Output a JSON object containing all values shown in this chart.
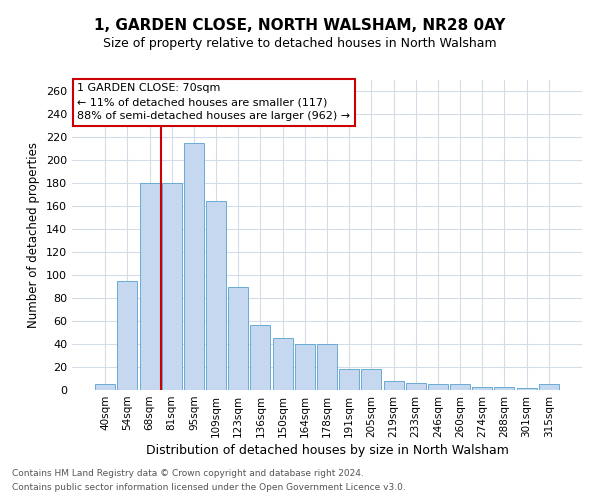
{
  "title": "1, GARDEN CLOSE, NORTH WALSHAM, NR28 0AY",
  "subtitle": "Size of property relative to detached houses in North Walsham",
  "xlabel": "Distribution of detached houses by size in North Walsham",
  "ylabel": "Number of detached properties",
  "footnote1": "Contains HM Land Registry data © Crown copyright and database right 2024.",
  "footnote2": "Contains public sector information licensed under the Open Government Licence v3.0.",
  "bar_labels": [
    "40sqm",
    "54sqm",
    "68sqm",
    "81sqm",
    "95sqm",
    "109sqm",
    "123sqm",
    "136sqm",
    "150sqm",
    "164sqm",
    "178sqm",
    "191sqm",
    "205sqm",
    "219sqm",
    "233sqm",
    "246sqm",
    "260sqm",
    "274sqm",
    "288sqm",
    "301sqm",
    "315sqm"
  ],
  "bar_values": [
    5,
    95,
    180,
    180,
    215,
    165,
    90,
    57,
    45,
    40,
    40,
    18,
    18,
    8,
    6,
    5,
    5,
    3,
    3,
    2,
    5
  ],
  "bar_color": "#c5d8f0",
  "bar_edgecolor": "#6aabd2",
  "ylim": [
    0,
    270
  ],
  "yticks": [
    0,
    20,
    40,
    60,
    80,
    100,
    120,
    140,
    160,
    180,
    200,
    220,
    240,
    260
  ],
  "property_label": "1 GARDEN CLOSE: 70sqm",
  "annotation_line1": "← 11% of detached houses are smaller (117)",
  "annotation_line2": "88% of semi-detached houses are larger (962) →",
  "vline_x": 2.5,
  "vline_color": "#cc0000",
  "annotation_box_color": "#cc0000",
  "grid_color": "#d3dce8",
  "background_color": "#ffffff",
  "title_fontsize": 11,
  "subtitle_fontsize": 9
}
